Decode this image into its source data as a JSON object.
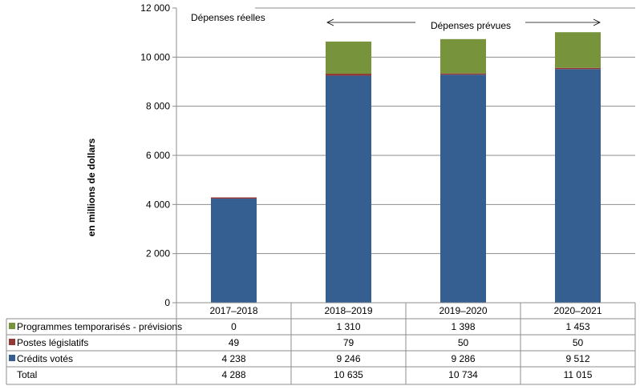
{
  "chart_data": {
    "type": "bar",
    "stacked": true,
    "ylabel": "en millions de dollars",
    "ylim": [
      0,
      12000
    ],
    "yticks": [
      0,
      2000,
      4000,
      6000,
      8000,
      10000,
      12000
    ],
    "ytick_labels": [
      "0",
      "2 000",
      "4 000",
      "6 000",
      "8 000",
      "10 000",
      "12 000"
    ],
    "grid": true,
    "categories": [
      "2017–2018",
      "2018–2019",
      "2019–2020",
      "2020–2021"
    ],
    "series": [
      {
        "name": "Crédits votés",
        "color": "#355F91",
        "values": [
          4238,
          9246,
          9286,
          9512
        ],
        "labels": [
          "4 238",
          "9 246",
          "9 286",
          "9 512"
        ]
      },
      {
        "name": "Postes législatifs",
        "color": "#953735",
        "values": [
          49,
          79,
          50,
          50
        ],
        "labels": [
          "49",
          "79",
          "50",
          "50"
        ]
      },
      {
        "name": "Programmes temporarisés - prévisions",
        "color": "#77933C",
        "values": [
          0,
          1310,
          1398,
          1453
        ],
        "labels": [
          "0",
          "1 310",
          "1 398",
          "1 453"
        ]
      }
    ],
    "total": {
      "name": "Total",
      "values": [
        4288,
        10635,
        10734,
        11015
      ],
      "labels": [
        "4 288",
        "10 635",
        "10 734",
        "11 015"
      ]
    },
    "annotations": {
      "actual": "Dépenses réelles",
      "planned": "Dépenses prévues"
    }
  }
}
